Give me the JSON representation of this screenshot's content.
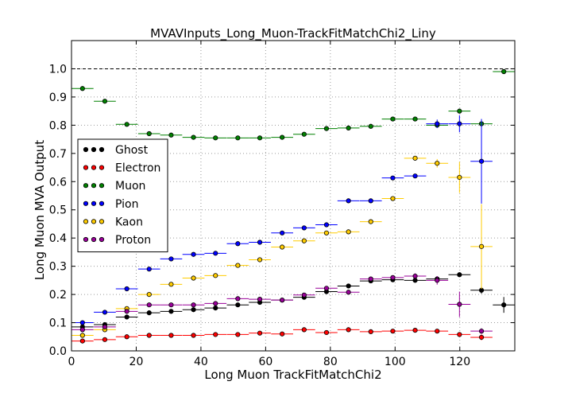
{
  "chart_data": {
    "type": "scatter",
    "title": "MVAVInputs_Long_Muon-TrackFitMatchChi2_Liny",
    "xlabel": "Long Muon TrackFitMatchChi2",
    "ylabel": "Long Muon MVA Output",
    "xlim": [
      0,
      137
    ],
    "ylim": [
      0,
      1.1
    ],
    "xticks": [
      0,
      20,
      40,
      60,
      80,
      100,
      120
    ],
    "yticks": [
      0.0,
      0.1,
      0.2,
      0.3,
      0.4,
      0.5,
      0.6,
      0.7,
      0.8,
      0.9,
      1.0
    ],
    "tick_labels_x": [
      "0",
      "20",
      "40",
      "60",
      "80",
      "100",
      "120"
    ],
    "tick_labels_y": [
      "0.0",
      "0.1",
      "0.2",
      "0.3",
      "0.4",
      "0.5",
      "0.6",
      "0.7",
      "0.8",
      "0.9",
      "1.0"
    ],
    "grid": true,
    "reference_line_y": 1.0,
    "legend_position": "left",
    "x_bin_half_width": 3.4,
    "series": [
      {
        "name": "Ghost",
        "color": "#000000",
        "x": [
          3.4,
          10.3,
          17.1,
          24.0,
          30.8,
          37.7,
          44.5,
          51.4,
          58.2,
          65.1,
          71.9,
          78.8,
          85.6,
          92.5,
          99.3,
          106.2,
          113.0,
          119.9,
          126.7,
          133.6
        ],
        "y": [
          0.085,
          0.093,
          0.12,
          0.135,
          0.14,
          0.146,
          0.152,
          0.163,
          0.172,
          0.18,
          0.19,
          0.21,
          0.23,
          0.248,
          0.252,
          0.25,
          0.255,
          0.27,
          0.215,
          0.163
        ],
        "yerr": [
          0.005,
          0.005,
          0.004,
          0.004,
          0.004,
          0.004,
          0.004,
          0.004,
          0.004,
          0.004,
          0.004,
          0.004,
          0.004,
          0.005,
          0.005,
          0.006,
          0.01,
          0.008,
          0.012,
          0.028
        ]
      },
      {
        "name": "Electron",
        "color": "#ff0000",
        "x": [
          3.4,
          10.3,
          17.1,
          24.0,
          30.8,
          37.7,
          44.5,
          51.4,
          58.2,
          65.1,
          71.9,
          78.8,
          85.6,
          92.5,
          99.3,
          106.2,
          113.0,
          119.9,
          126.7
        ],
        "y": [
          0.035,
          0.04,
          0.05,
          0.055,
          0.055,
          0.055,
          0.058,
          0.058,
          0.063,
          0.06,
          0.075,
          0.065,
          0.075,
          0.068,
          0.07,
          0.073,
          0.07,
          0.058,
          0.048
        ],
        "yerr": [
          0.003,
          0.003,
          0.003,
          0.003,
          0.003,
          0.003,
          0.003,
          0.003,
          0.003,
          0.003,
          0.004,
          0.004,
          0.004,
          0.004,
          0.004,
          0.004,
          0.004,
          0.005,
          0.01
        ]
      },
      {
        "name": "Muon",
        "color": "#008000",
        "x": [
          3.4,
          10.3,
          17.1,
          24.0,
          30.8,
          37.7,
          44.5,
          51.4,
          58.2,
          65.1,
          71.9,
          78.8,
          85.6,
          92.5,
          99.3,
          106.2,
          113.0,
          119.9,
          126.7,
          133.6
        ],
        "y": [
          0.93,
          0.885,
          0.803,
          0.77,
          0.765,
          0.757,
          0.755,
          0.755,
          0.755,
          0.757,
          0.768,
          0.788,
          0.79,
          0.796,
          0.822,
          0.822,
          0.8,
          0.85,
          0.805,
          0.99
        ],
        "yerr": [
          0.002,
          0.002,
          0.002,
          0.002,
          0.002,
          0.002,
          0.002,
          0.002,
          0.002,
          0.002,
          0.002,
          0.002,
          0.002,
          0.002,
          0.002,
          0.002,
          0.004,
          0.005,
          0.008,
          0.004
        ]
      },
      {
        "name": "Pion",
        "color": "#0000ff",
        "x": [
          3.4,
          10.3,
          17.1,
          24.0,
          30.8,
          37.7,
          44.5,
          51.4,
          58.2,
          65.1,
          71.9,
          78.8,
          85.6,
          92.5,
          99.3,
          106.2,
          113.0,
          119.9,
          126.7
        ],
        "y": [
          0.1,
          0.137,
          0.22,
          0.29,
          0.326,
          0.342,
          0.346,
          0.38,
          0.385,
          0.418,
          0.436,
          0.447,
          0.532,
          0.532,
          0.613,
          0.62,
          0.805,
          0.805,
          0.672
        ],
        "yerr": [
          0.003,
          0.003,
          0.003,
          0.003,
          0.003,
          0.003,
          0.003,
          0.003,
          0.003,
          0.003,
          0.004,
          0.004,
          0.004,
          0.004,
          0.005,
          0.006,
          0.015,
          0.03,
          0.15
        ]
      },
      {
        "name": "Kaon",
        "color": "#ffcc00",
        "x": [
          3.4,
          10.3,
          17.1,
          24.0,
          30.8,
          37.7,
          44.5,
          51.4,
          58.2,
          65.1,
          71.9,
          78.8,
          85.6,
          92.5,
          99.3,
          106.2,
          113.0,
          119.9,
          126.7
        ],
        "y": [
          0.055,
          0.075,
          0.15,
          0.2,
          0.236,
          0.258,
          0.267,
          0.303,
          0.323,
          0.368,
          0.39,
          0.418,
          0.422,
          0.458,
          0.54,
          0.683,
          0.665,
          0.615,
          0.37
        ],
        "yerr": [
          0.003,
          0.003,
          0.003,
          0.003,
          0.003,
          0.003,
          0.003,
          0.003,
          0.003,
          0.003,
          0.004,
          0.004,
          0.004,
          0.005,
          0.005,
          0.008,
          0.015,
          0.055,
          0.15
        ]
      },
      {
        "name": "Proton",
        "color": "#990099",
        "x": [
          3.4,
          10.3,
          17.1,
          24.0,
          30.8,
          37.7,
          44.5,
          51.4,
          58.2,
          65.1,
          71.9,
          78.8,
          85.6,
          92.5,
          99.3,
          106.2,
          113.0,
          119.9,
          126.7
        ],
        "y": [
          0.075,
          0.085,
          0.14,
          0.163,
          0.163,
          0.163,
          0.168,
          0.185,
          0.183,
          0.18,
          0.198,
          0.222,
          0.208,
          0.255,
          0.26,
          0.265,
          0.25,
          0.165,
          0.07
        ],
        "yerr": [
          0.003,
          0.003,
          0.004,
          0.004,
          0.004,
          0.004,
          0.004,
          0.004,
          0.004,
          0.004,
          0.005,
          0.006,
          0.006,
          0.007,
          0.008,
          0.01,
          0.015,
          0.045,
          0.01
        ]
      }
    ]
  }
}
